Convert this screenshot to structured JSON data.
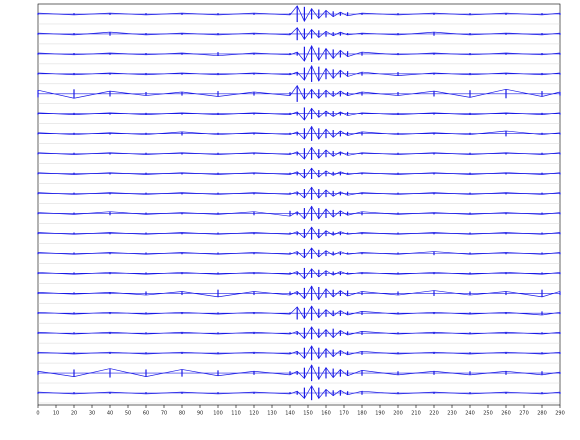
{
  "chart_data": {
    "type": "seismogram",
    "color": "#1a1ae6",
    "x": [
      0,
      20,
      40,
      60,
      80,
      100,
      120,
      140,
      144,
      148,
      152,
      156,
      160,
      164,
      168,
      172,
      180,
      200,
      220,
      240,
      260,
      280,
      290
    ],
    "xlim": [
      0,
      290
    ],
    "xticks": [
      0,
      10,
      20,
      30,
      40,
      50,
      60,
      70,
      80,
      90,
      100,
      110,
      120,
      130,
      140,
      150,
      160,
      170,
      180,
      190,
      200,
      210,
      220,
      230,
      240,
      250,
      260,
      270,
      280,
      290
    ],
    "ylim": [
      0,
      10
    ],
    "series": [
      {
        "values": [
          1,
          1,
          1,
          1,
          1,
          1,
          1,
          1,
          9,
          8,
          6,
          5,
          4,
          3,
          2,
          2,
          1,
          1,
          1,
          1,
          1,
          1,
          1
        ]
      },
      {
        "values": [
          1,
          1,
          2,
          1,
          1,
          1,
          1,
          1,
          7,
          6,
          5,
          4,
          3,
          2,
          2,
          1,
          1,
          1,
          2,
          1,
          1,
          1,
          1
        ]
      },
      {
        "values": [
          1,
          1,
          1,
          1,
          1,
          2,
          1,
          1,
          2,
          8,
          9,
          7,
          6,
          5,
          4,
          3,
          2,
          1,
          1,
          1,
          1,
          1,
          1
        ]
      },
      {
        "values": [
          1,
          1,
          1,
          1,
          1,
          1,
          1,
          1,
          2,
          7,
          9,
          8,
          6,
          5,
          4,
          3,
          2,
          2,
          1,
          1,
          1,
          1,
          1
        ]
      },
      {
        "values": [
          4,
          5,
          3,
          2,
          2,
          3,
          2,
          2,
          9,
          6,
          5,
          5,
          4,
          3,
          3,
          2,
          2,
          2,
          3,
          4,
          5,
          3,
          2
        ]
      },
      {
        "values": [
          1,
          1,
          1,
          1,
          1,
          1,
          1,
          1,
          2,
          7,
          6,
          4,
          3,
          3,
          2,
          2,
          1,
          1,
          1,
          1,
          1,
          1,
          1
        ]
      },
      {
        "values": [
          1,
          1,
          1,
          1,
          2,
          1,
          1,
          1,
          2,
          6,
          8,
          6,
          5,
          4,
          3,
          2,
          2,
          1,
          1,
          1,
          3,
          1,
          1
        ]
      },
      {
        "values": [
          1,
          1,
          1,
          1,
          1,
          1,
          1,
          1,
          2,
          6,
          7,
          5,
          4,
          3,
          2,
          2,
          1,
          1,
          1,
          1,
          1,
          1,
          1
        ]
      },
      {
        "values": [
          1,
          1,
          1,
          1,
          1,
          1,
          1,
          1,
          2,
          5,
          6,
          4,
          3,
          2,
          2,
          1,
          1,
          1,
          1,
          1,
          1,
          1,
          1
        ]
      },
      {
        "values": [
          1,
          1,
          1,
          1,
          1,
          1,
          1,
          1,
          2,
          5,
          7,
          5,
          4,
          3,
          2,
          2,
          1,
          1,
          1,
          1,
          1,
          1,
          1
        ]
      },
      {
        "values": [
          1,
          1,
          2,
          1,
          1,
          1,
          2,
          3,
          2,
          6,
          8,
          6,
          5,
          4,
          3,
          2,
          2,
          1,
          1,
          1,
          1,
          1,
          1
        ]
      },
      {
        "values": [
          1,
          1,
          1,
          1,
          1,
          1,
          1,
          1,
          2,
          5,
          7,
          5,
          3,
          2,
          2,
          1,
          1,
          1,
          1,
          1,
          1,
          1,
          1
        ]
      },
      {
        "values": [
          1,
          1,
          1,
          1,
          1,
          1,
          1,
          1,
          2,
          5,
          6,
          4,
          3,
          2,
          2,
          1,
          1,
          1,
          2,
          1,
          1,
          1,
          1
        ]
      },
      {
        "values": [
          1,
          1,
          1,
          1,
          1,
          1,
          1,
          1,
          2,
          6,
          5,
          4,
          3,
          2,
          2,
          1,
          1,
          1,
          1,
          1,
          1,
          1,
          1
        ]
      },
      {
        "values": [
          1,
          1,
          1,
          2,
          2,
          4,
          2,
          2,
          2,
          6,
          8,
          7,
          5,
          4,
          3,
          3,
          2,
          2,
          3,
          2,
          2,
          4,
          2
        ]
      },
      {
        "values": [
          1,
          1,
          1,
          1,
          1,
          1,
          1,
          1,
          7,
          6,
          8,
          5,
          4,
          3,
          3,
          2,
          2,
          1,
          1,
          1,
          1,
          2,
          1
        ]
      },
      {
        "values": [
          1,
          1,
          1,
          1,
          1,
          1,
          1,
          1,
          2,
          6,
          7,
          5,
          4,
          5,
          3,
          2,
          2,
          1,
          1,
          1,
          1,
          1,
          1
        ]
      },
      {
        "values": [
          1,
          1,
          1,
          1,
          1,
          1,
          1,
          1,
          2,
          6,
          8,
          6,
          5,
          4,
          3,
          2,
          2,
          1,
          1,
          1,
          1,
          1,
          1
        ]
      },
      {
        "values": [
          2,
          4,
          5,
          4,
          4,
          3,
          2,
          2,
          2,
          6,
          9,
          7,
          6,
          5,
          4,
          3,
          3,
          2,
          2,
          2,
          2,
          2,
          1
        ]
      },
      {
        "values": [
          1,
          1,
          1,
          1,
          1,
          1,
          1,
          1,
          2,
          6,
          8,
          6,
          4,
          3,
          3,
          2,
          2,
          1,
          1,
          1,
          1,
          1,
          1
        ]
      }
    ]
  }
}
